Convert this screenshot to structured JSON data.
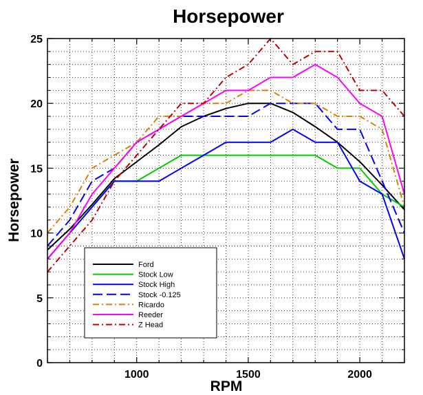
{
  "chart_data": {
    "type": "line",
    "title": "Horsepower",
    "xlabel": "RPM",
    "ylabel": "Horsepower",
    "xlim": [
      600,
      2200
    ],
    "ylim": [
      0,
      25
    ],
    "xticks": [
      1000,
      1500,
      2000
    ],
    "yticks": [
      0,
      5,
      10,
      15,
      20,
      25
    ],
    "grid": "dotted",
    "legend_position": "lower-left",
    "series": [
      {
        "name": "Ford",
        "color": "#000000",
        "dash": "solid",
        "x": [
          600,
          700,
          800,
          900,
          1000,
          1100,
          1200,
          1300,
          1400,
          1500,
          1600,
          1700,
          1800,
          1900,
          2000,
          2100,
          2200
        ],
        "y": [
          8.7,
          10.3,
          12.2,
          14.2,
          15.5,
          16.8,
          18.2,
          19.0,
          19.6,
          20.0,
          20.0,
          19.3,
          18.2,
          17.0,
          15.5,
          13.7,
          11.8
        ]
      },
      {
        "name": "Stock Low",
        "color": "#00cc00",
        "dash": "solid",
        "x": [
          600,
          700,
          800,
          900,
          1000,
          1100,
          1200,
          1300,
          1400,
          1500,
          1600,
          1700,
          1800,
          1900,
          2000,
          2100,
          2200
        ],
        "y": [
          8,
          10,
          12,
          14,
          14,
          15,
          16,
          16,
          16,
          16,
          16,
          16,
          16,
          15,
          15,
          13,
          12
        ]
      },
      {
        "name": "Stock High",
        "color": "#0000ff",
        "dash": "solid",
        "x": [
          600,
          700,
          800,
          900,
          1000,
          1100,
          1200,
          1300,
          1400,
          1500,
          1600,
          1700,
          1800,
          1900,
          2000,
          2100,
          2200
        ],
        "y": [
          8,
          10,
          12,
          14,
          14,
          14,
          15,
          16,
          17,
          17,
          17,
          18,
          17,
          17,
          14,
          13,
          8
        ]
      },
      {
        "name": "Stock -0.125",
        "color": "#0000ff",
        "dash": "long",
        "x": [
          600,
          700,
          800,
          900,
          1000,
          1100,
          1200,
          1300,
          1400,
          1500,
          1600,
          1700,
          1800,
          1900,
          2000,
          2100,
          2200
        ],
        "y": [
          9,
          11,
          14,
          15,
          17,
          18,
          19,
          19,
          19,
          19,
          20,
          20,
          20,
          18,
          18,
          14,
          10
        ]
      },
      {
        "name": "Ricardo",
        "color": "#e08000",
        "dash": "dashdot",
        "x": [
          600,
          700,
          800,
          900,
          1000,
          1100,
          1200,
          1300,
          1400,
          1500,
          1600,
          1700,
          1800,
          1900,
          2000,
          2100,
          2200
        ],
        "y": [
          10,
          12,
          15,
          16,
          17,
          19,
          19,
          20,
          20,
          21,
          21,
          20,
          20,
          19,
          19,
          18,
          12
        ]
      },
      {
        "name": "Reeder",
        "color": "#ff00ff",
        "dash": "solid",
        "x": [
          600,
          700,
          800,
          900,
          1000,
          1100,
          1200,
          1300,
          1400,
          1500,
          1600,
          1700,
          1800,
          1900,
          2000,
          2100,
          2200
        ],
        "y": [
          8,
          10,
          13,
          15,
          17,
          18,
          19,
          20,
          21,
          21,
          22,
          22,
          23,
          22,
          20,
          19,
          13
        ]
      },
      {
        "name": "Z Head",
        "color": "#c00000",
        "dash": "dashdot",
        "x": [
          600,
          700,
          800,
          900,
          1000,
          1100,
          1200,
          1300,
          1400,
          1500,
          1600,
          1700,
          1800,
          1900,
          2000,
          2100,
          2200
        ],
        "y": [
          7,
          9,
          11,
          14,
          16,
          18,
          20,
          20,
          22,
          23,
          25,
          23,
          24,
          24,
          21,
          21,
          19
        ]
      }
    ]
  }
}
